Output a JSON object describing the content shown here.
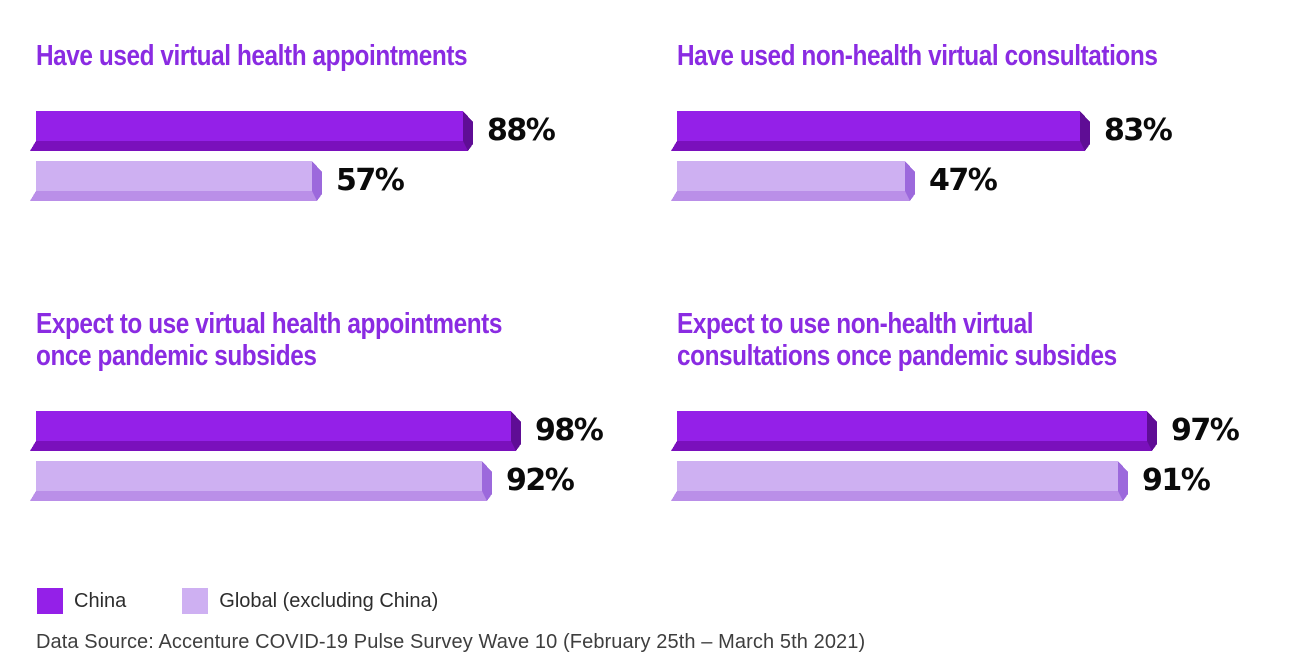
{
  "chart_data": {
    "type": "bar",
    "orientation": "horizontal",
    "unit": "%",
    "xlim": [
      0,
      100
    ],
    "grid": false,
    "legend_position": "bottom-left",
    "title_color": "#8A2BE2",
    "value_label_color": "#0a0a0a",
    "series": [
      {
        "name": "China",
        "color": "#9420E8",
        "color_bottom": "#7A10BC",
        "color_side": "#5F0D95"
      },
      {
        "name": "Global (excluding China)",
        "color": "#CEB0F2",
        "color_bottom": "#BA8FE8",
        "color_side": "#9C69DC"
      }
    ],
    "panels": [
      {
        "title": "Have used virtual health appointments",
        "values": [
          88,
          57
        ]
      },
      {
        "title": "Have used non-health virtual consultations",
        "values": [
          83,
          47
        ]
      },
      {
        "title": "Expect to use virtual health appointments\nonce pandemic subsides",
        "values": [
          98,
          92
        ]
      },
      {
        "title": "Expect to use non-health virtual\nconsultations once pandemic subsides",
        "values": [
          97,
          91
        ]
      }
    ],
    "legend": [
      {
        "label": "China",
        "color": "#9420E8"
      },
      {
        "label": "Global (excluding China)",
        "color": "#CEB0F2"
      }
    ],
    "source": "Data Source: Accenture COVID-19 Pulse Survey Wave 10 (February 25th – March 5th 2021)"
  }
}
